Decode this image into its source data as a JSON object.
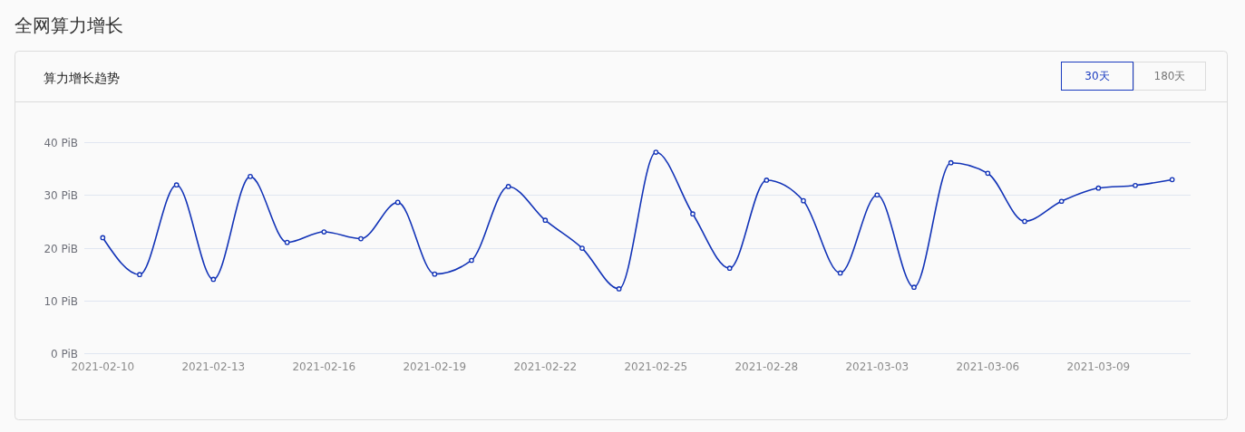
{
  "chart_data": {
    "type": "line",
    "title": "全网算力增长",
    "subtitle": "算力增长趋势",
    "annotations": [
      "30天",
      "180天"
    ],
    "x": [
      "2021-02-10",
      "2021-02-11",
      "2021-02-12",
      "2021-02-13",
      "2021-02-14",
      "2021-02-15",
      "2021-02-16",
      "2021-02-17",
      "2021-02-18",
      "2021-02-19",
      "2021-02-20",
      "2021-02-21",
      "2021-02-22",
      "2021-02-23",
      "2021-02-24",
      "2021-02-25",
      "2021-02-26",
      "2021-02-27",
      "2021-02-28",
      "2021-03-01",
      "2021-03-02",
      "2021-03-03",
      "2021-03-04",
      "2021-03-05",
      "2021-03-06",
      "2021-03-07",
      "2021-03-08",
      "2021-03-09",
      "2021-03-10",
      "2021-03-11"
    ],
    "series": [
      {
        "color": "#1233b7",
        "values": [
          21.9,
          14.9,
          31.9,
          14.0,
          33.5,
          21.0,
          23.0,
          21.7,
          28.6,
          15.0,
          17.6,
          31.6,
          25.2,
          19.9,
          12.2,
          38.1,
          26.4,
          16.1,
          32.8,
          28.9,
          15.2,
          30.0,
          12.5,
          36.1,
          34.1,
          25.0,
          28.8,
          31.3,
          31.8,
          32.9
        ]
      }
    ],
    "xlim": [
      "2021-02-09T12:00",
      "2021-03-11T12:00"
    ],
    "xticks": [
      "2021-02-10",
      "2021-02-13",
      "2021-02-16",
      "2021-02-19",
      "2021-02-22",
      "2021-02-25",
      "2021-02-28",
      "2021-03-03",
      "2021-03-06",
      "2021-03-09"
    ],
    "ylim": [
      0,
      40
    ],
    "yticks": [
      {
        "value": 0,
        "label": "0 PiB"
      },
      {
        "value": 10,
        "label": "10 PiB"
      },
      {
        "value": 20,
        "label": "20 PiB"
      },
      {
        "value": 30,
        "label": "30 PiB"
      },
      {
        "value": 40,
        "label": "40 PiB"
      }
    ],
    "grid": "y",
    "marker": "circle",
    "line_style": "solid"
  }
}
